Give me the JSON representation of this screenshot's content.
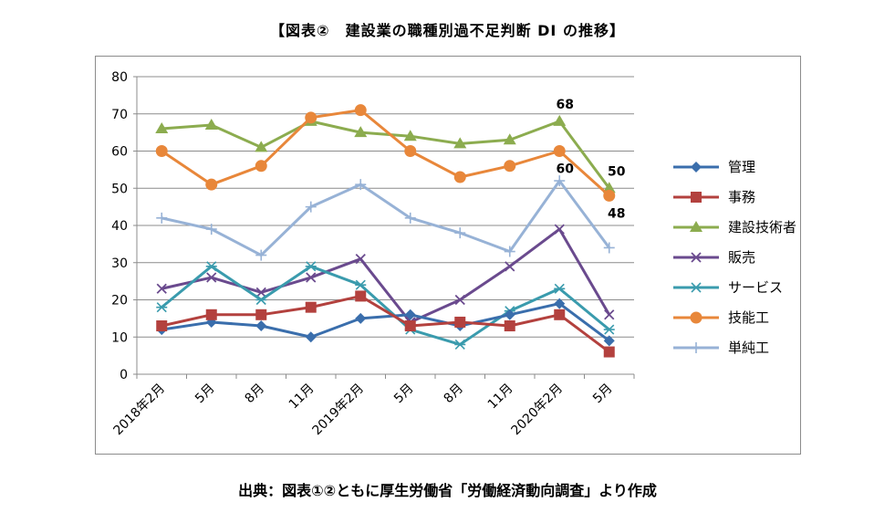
{
  "page": {
    "title": "【図表②　建設業の職種別過不足判断 DI の推移】",
    "source": "出典：図表①②ともに厚生労働省「労働経済動向調査」より作成"
  },
  "chart_data": {
    "type": "line",
    "title": "【図表②　建設業の職種別過不足判断 DI の推移】",
    "categories": [
      "2018年2月",
      "5月",
      "8月",
      "11月",
      "2019年2月",
      "5月",
      "8月",
      "11月",
      "2020年2月",
      "5月"
    ],
    "ylim": [
      0,
      80
    ],
    "yticks": [
      0,
      10,
      20,
      30,
      40,
      50,
      60,
      70,
      80
    ],
    "grid": true,
    "legend_position": "right",
    "series": [
      {
        "name": "管理",
        "values": [
          12,
          14,
          13,
          10,
          15,
          16,
          13,
          16,
          19,
          9
        ],
        "color": "#3a6eac",
        "marker": "diamond"
      },
      {
        "name": "事務",
        "values": [
          13,
          16,
          16,
          18,
          21,
          13,
          14,
          13,
          16,
          6
        ],
        "color": "#b3413e",
        "marker": "square"
      },
      {
        "name": "建設技術者",
        "values": [
          66,
          67,
          61,
          68,
          65,
          64,
          62,
          63,
          68,
          50
        ],
        "color": "#8cac4f",
        "marker": "triangle"
      },
      {
        "name": "販売",
        "values": [
          23,
          26,
          22,
          26,
          31,
          14,
          20,
          29,
          39,
          16
        ],
        "color": "#6a4a8e",
        "marker": "x"
      },
      {
        "name": "サービス",
        "values": [
          18,
          29,
          20,
          29,
          24,
          12,
          8,
          17,
          23,
          12
        ],
        "color": "#3a9bad",
        "marker": "star"
      },
      {
        "name": "技能工",
        "values": [
          60,
          51,
          56,
          69,
          71,
          60,
          53,
          56,
          60,
          48
        ],
        "color": "#e8873a",
        "marker": "circle"
      },
      {
        "name": "単純工",
        "values": [
          42,
          39,
          32,
          45,
          51,
          42,
          38,
          33,
          52,
          34
        ],
        "color": "#97b2d6",
        "marker": "plus"
      }
    ],
    "annotations": [
      {
        "text": "68",
        "series": "建設技術者",
        "index": 8,
        "position": "above"
      },
      {
        "text": "60",
        "series": "技能工",
        "index": 8,
        "position": "below"
      },
      {
        "text": "50",
        "series": "建設技術者",
        "index": 9,
        "position": "above"
      },
      {
        "text": "48",
        "series": "技能工",
        "index": 9,
        "position": "below"
      }
    ]
  }
}
